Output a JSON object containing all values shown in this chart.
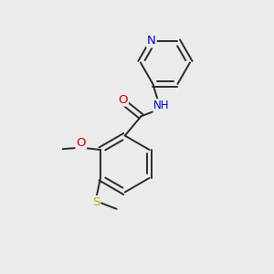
{
  "background_color": "#ebebeb",
  "atom_colors": {
    "N": "#0000cc",
    "O": "#cc0000",
    "S": "#bbaa00",
    "C": "#2a2a2a",
    "H": "#2a2a2a"
  },
  "bond_color": "#2a2a2a",
  "font_size_atoms": 8.5,
  "fig_size": [
    3.0,
    3.0
  ],
  "dpi": 100
}
